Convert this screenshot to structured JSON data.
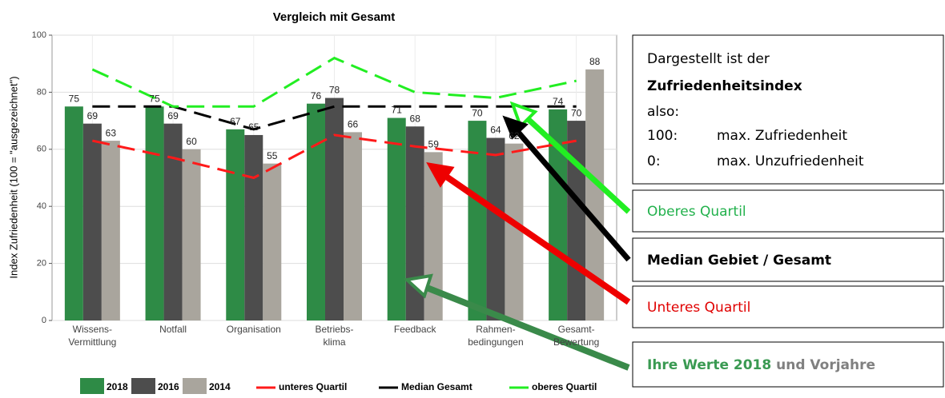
{
  "chart_data": {
    "type": "bar",
    "title": "Vergleich mit Gesamt",
    "y_label": "Index Zufriedenheit (100 = \"ausgezeichnet\")",
    "categories": [
      [
        "Wissens-",
        "Vermittlung"
      ],
      [
        "Notfall"
      ],
      [
        "Organisation"
      ],
      [
        "Betriebs-",
        "klima"
      ],
      [
        "Feedback"
      ],
      [
        "Rahmen-",
        "bedingungen"
      ],
      [
        "Gesamt-",
        "Bewertung"
      ]
    ],
    "series": [
      {
        "name": "2018",
        "color": "#2e8b46",
        "values": [
          75,
          75,
          67,
          76,
          71,
          70,
          74
        ]
      },
      {
        "name": "2016",
        "color": "#4d4d4d",
        "values": [
          69,
          69,
          65,
          78,
          68,
          64,
          70
        ]
      },
      {
        "name": "2014",
        "color": "#a9a59d",
        "values": [
          63,
          60,
          55,
          66,
          59,
          62,
          88
        ]
      }
    ],
    "lines": [
      {
        "name": "unteres Quartil",
        "color": "#ff1a1a",
        "values": [
          63,
          57,
          50,
          65,
          61,
          58,
          63
        ]
      },
      {
        "name": "Median Gesamt",
        "color": "#000000",
        "values": [
          75,
          75,
          67,
          75,
          75,
          75,
          75
        ]
      },
      {
        "name": "oberes Quartil",
        "color": "#22ee22",
        "values": [
          88,
          75,
          75,
          92,
          80,
          78,
          84
        ]
      }
    ],
    "ylim": [
      0,
      100
    ],
    "yticks": [
      0,
      20,
      40,
      60,
      80,
      100
    ],
    "grid": true
  },
  "annotations": {
    "info": {
      "line1": "Dargestellt ist der",
      "line2": "Zufriedenheitsindex",
      "line3": "also:",
      "row1": [
        "100:",
        "max. Zufriedenheit"
      ],
      "row2": [
        "0:",
        "max. Unzufriedenheit"
      ]
    },
    "upper": "Oberes Quartil",
    "median": "Median Gebiet / Gesamt",
    "lower": "Unteres Quartil",
    "own": [
      "Ihre Werte 2018",
      " und Vorjahre"
    ]
  }
}
